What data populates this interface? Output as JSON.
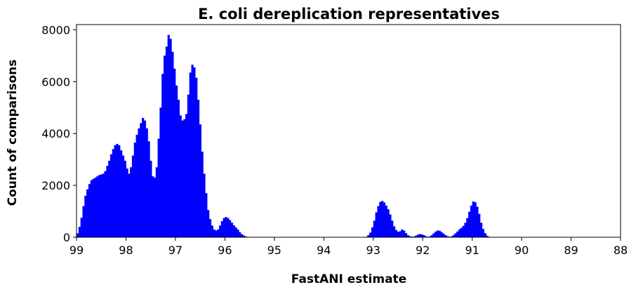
{
  "chart_data": {
    "type": "bar",
    "title": "E. coli dereplication representatives",
    "xlabel": "FastANI estimate",
    "ylabel": "Count of comparisons",
    "xlim": [
      99,
      88
    ],
    "ylim": [
      0,
      8200
    ],
    "x_reversed": true,
    "xticks": [
      99,
      98,
      97,
      96,
      95,
      94,
      93,
      92,
      91,
      90,
      89,
      88
    ],
    "yticks": [
      0,
      2000,
      4000,
      6000,
      8000
    ],
    "bar_color": "#0000ff",
    "grid": false,
    "legend": "none",
    "bin_width": 0.04,
    "bins": [
      [
        99.0,
        150
      ],
      [
        98.96,
        400
      ],
      [
        98.92,
        750
      ],
      [
        98.88,
        1200
      ],
      [
        98.84,
        1600
      ],
      [
        98.8,
        1850
      ],
      [
        98.76,
        2050
      ],
      [
        98.72,
        2200
      ],
      [
        98.68,
        2250
      ],
      [
        98.64,
        2300
      ],
      [
        98.6,
        2350
      ],
      [
        98.56,
        2400
      ],
      [
        98.52,
        2420
      ],
      [
        98.48,
        2450
      ],
      [
        98.44,
        2550
      ],
      [
        98.4,
        2750
      ],
      [
        98.36,
        2950
      ],
      [
        98.32,
        3200
      ],
      [
        98.28,
        3400
      ],
      [
        98.24,
        3550
      ],
      [
        98.2,
        3600
      ],
      [
        98.16,
        3550
      ],
      [
        98.12,
        3350
      ],
      [
        98.08,
        3150
      ],
      [
        98.04,
        2950
      ],
      [
        98.0,
        2650
      ],
      [
        97.96,
        2450
      ],
      [
        97.92,
        2700
      ],
      [
        97.88,
        3150
      ],
      [
        97.84,
        3650
      ],
      [
        97.8,
        3950
      ],
      [
        97.76,
        4200
      ],
      [
        97.72,
        4400
      ],
      [
        97.68,
        4600
      ],
      [
        97.64,
        4500
      ],
      [
        97.6,
        4200
      ],
      [
        97.56,
        3700
      ],
      [
        97.52,
        2950
      ],
      [
        97.48,
        2350
      ],
      [
        97.44,
        2300
      ],
      [
        97.4,
        2700
      ],
      [
        97.36,
        3800
      ],
      [
        97.32,
        5000
      ],
      [
        97.28,
        6300
      ],
      [
        97.24,
        7000
      ],
      [
        97.2,
        7350
      ],
      [
        97.16,
        7800
      ],
      [
        97.12,
        7650
      ],
      [
        97.08,
        7150
      ],
      [
        97.04,
        6500
      ],
      [
        97.0,
        5850
      ],
      [
        96.96,
        5300
      ],
      [
        96.92,
        4700
      ],
      [
        96.88,
        4500
      ],
      [
        96.84,
        4550
      ],
      [
        96.8,
        4750
      ],
      [
        96.76,
        5500
      ],
      [
        96.72,
        6350
      ],
      [
        96.68,
        6650
      ],
      [
        96.64,
        6550
      ],
      [
        96.6,
        6150
      ],
      [
        96.56,
        5300
      ],
      [
        96.52,
        4350
      ],
      [
        96.48,
        3300
      ],
      [
        96.44,
        2450
      ],
      [
        96.4,
        1700
      ],
      [
        96.36,
        1050
      ],
      [
        96.32,
        700
      ],
      [
        96.28,
        450
      ],
      [
        96.24,
        300
      ],
      [
        96.2,
        260
      ],
      [
        96.16,
        300
      ],
      [
        96.12,
        450
      ],
      [
        96.08,
        620
      ],
      [
        96.04,
        740
      ],
      [
        96.0,
        780
      ],
      [
        95.96,
        740
      ],
      [
        95.92,
        660
      ],
      [
        95.88,
        560
      ],
      [
        95.84,
        460
      ],
      [
        95.8,
        380
      ],
      [
        95.76,
        300
      ],
      [
        95.72,
        200
      ],
      [
        95.68,
        120
      ],
      [
        95.64,
        70
      ],
      [
        95.6,
        30
      ],
      [
        95.56,
        10
      ],
      [
        93.16,
        20
      ],
      [
        93.12,
        80
      ],
      [
        93.08,
        180
      ],
      [
        93.04,
        380
      ],
      [
        93.0,
        640
      ],
      [
        92.96,
        960
      ],
      [
        92.92,
        1200
      ],
      [
        92.88,
        1360
      ],
      [
        92.84,
        1400
      ],
      [
        92.8,
        1340
      ],
      [
        92.76,
        1220
      ],
      [
        92.72,
        1080
      ],
      [
        92.68,
        880
      ],
      [
        92.64,
        640
      ],
      [
        92.6,
        420
      ],
      [
        92.56,
        280
      ],
      [
        92.52,
        210
      ],
      [
        92.48,
        230
      ],
      [
        92.44,
        300
      ],
      [
        92.4,
        260
      ],
      [
        92.36,
        160
      ],
      [
        92.32,
        80
      ],
      [
        92.28,
        40
      ],
      [
        92.24,
        20
      ],
      [
        92.2,
        30
      ],
      [
        92.16,
        60
      ],
      [
        92.12,
        100
      ],
      [
        92.08,
        120
      ],
      [
        92.04,
        110
      ],
      [
        92.0,
        80
      ],
      [
        91.96,
        40
      ],
      [
        91.92,
        20
      ],
      [
        91.88,
        30
      ],
      [
        91.84,
        80
      ],
      [
        91.8,
        150
      ],
      [
        91.76,
        220
      ],
      [
        91.72,
        260
      ],
      [
        91.68,
        250
      ],
      [
        91.64,
        200
      ],
      [
        91.6,
        140
      ],
      [
        91.56,
        80
      ],
      [
        91.52,
        40
      ],
      [
        91.48,
        20
      ],
      [
        91.44,
        30
      ],
      [
        91.4,
        80
      ],
      [
        91.36,
        150
      ],
      [
        91.32,
        220
      ],
      [
        91.28,
        300
      ],
      [
        91.24,
        360
      ],
      [
        91.2,
        440
      ],
      [
        91.16,
        560
      ],
      [
        91.12,
        740
      ],
      [
        91.08,
        980
      ],
      [
        91.04,
        1220
      ],
      [
        91.0,
        1380
      ],
      [
        90.96,
        1350
      ],
      [
        90.92,
        1180
      ],
      [
        90.88,
        900
      ],
      [
        90.84,
        560
      ],
      [
        90.8,
        320
      ],
      [
        90.76,
        160
      ],
      [
        90.72,
        60
      ],
      [
        90.68,
        20
      ]
    ]
  }
}
